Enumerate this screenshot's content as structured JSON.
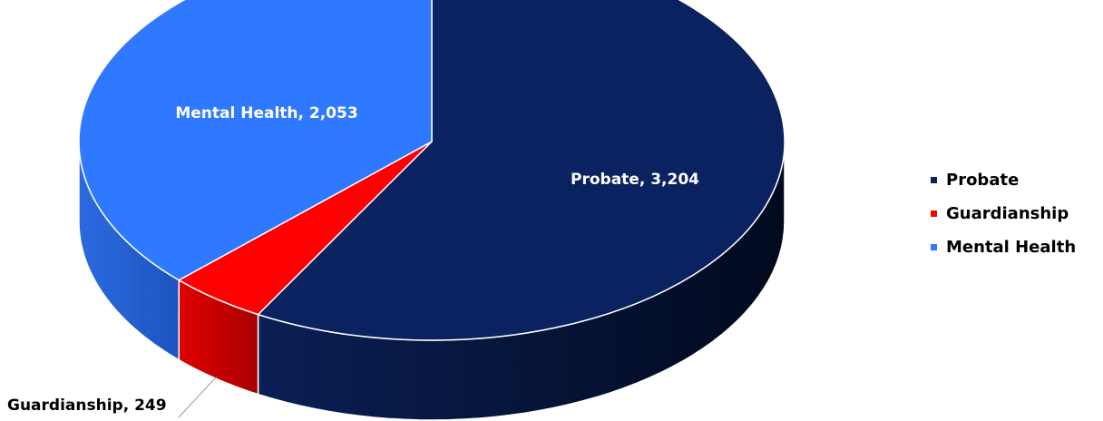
{
  "chart_data": {
    "type": "pie",
    "categories": [
      "Probate",
      "Guardianship",
      "Mental Health"
    ],
    "values": [
      3204,
      249,
      2053
    ],
    "data_labels": [
      "Probate, 3,204",
      "Guardianship, 249",
      "Mental Health, 2,053"
    ],
    "colors": [
      "#0b2260",
      "#ff0000",
      "#2e79ff"
    ],
    "legend_position": "right",
    "style": "3d"
  },
  "legend": {
    "items": [
      {
        "label": "Probate",
        "color": "#0b2260"
      },
      {
        "label": "Guardianship",
        "color": "#ff0000"
      },
      {
        "label": "Mental Health",
        "color": "#2e79ff"
      }
    ]
  }
}
